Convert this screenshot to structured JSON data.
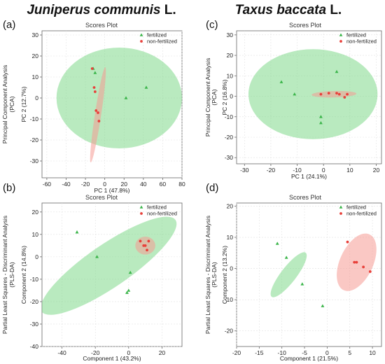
{
  "species": [
    {
      "name": "Juniperus communis",
      "author": "L."
    },
    {
      "name": "Taxus baccata",
      "author": "L."
    }
  ],
  "colors": {
    "fertilized": "#3bb54a",
    "non_fertilized": "#e8403a",
    "fertilized_fill": "#7fd88a",
    "non_fertilized_fill": "#f59a93"
  },
  "chart_data": [
    {
      "panel": "(a)",
      "type": "scatter",
      "title": "Scores Plot",
      "method_label": [
        "Principal Component Analysis",
        "(PCA)"
      ],
      "xlabel": "PC 1 (47.8%)",
      "ylabel": "PC 2 (12.7%)",
      "xlim": [
        -65,
        80
      ],
      "ylim": [
        -38,
        32
      ],
      "xticks": [
        -60,
        -40,
        -20,
        0,
        20,
        40,
        60,
        80
      ],
      "yticks": [
        -30,
        -20,
        -10,
        0,
        10,
        20,
        30
      ],
      "grid": true,
      "legend_position": "top-right",
      "series": [
        {
          "name": "fertilized",
          "marker": "triangle",
          "points": [
            [
              -12,
              14
            ],
            [
              -10,
              12
            ],
            [
              22,
              0
            ],
            [
              43,
              5
            ]
          ],
          "ellipse": {
            "cx": 15,
            "cy": 0,
            "rx": 65,
            "ry": 24,
            "angle": 0
          }
        },
        {
          "name": "non-fertilized",
          "marker": "circle",
          "points": [
            [
              -13,
              14
            ],
            [
              -11,
              5
            ],
            [
              -10,
              3
            ],
            [
              -9,
              -6
            ],
            [
              -7,
              -7
            ],
            [
              -6,
              -11
            ]
          ],
          "ellipse": {
            "cx": -7,
            "cy": -8,
            "rx": 3.2,
            "ry": 23,
            "angle": -4
          }
        }
      ]
    },
    {
      "panel": "(c)",
      "type": "scatter",
      "title": "Scores Plot",
      "method_label": [
        "Principal Component Analysis",
        "(PCA)"
      ],
      "xlabel": "PC 1 (24.1%)",
      "ylabel": "PC 2 (16.8%)",
      "xlim": [
        -33,
        22
      ],
      "ylim": [
        -33,
        32
      ],
      "xticks": [
        -30,
        -20,
        -10,
        0,
        10,
        20
      ],
      "yticks": [
        -30,
        -20,
        -10,
        0,
        10,
        20,
        30
      ],
      "grid": true,
      "legend_position": "top-right",
      "series": [
        {
          "name": "fertilized",
          "marker": "triangle",
          "points": [
            [
              -16,
              7
            ],
            [
              -11,
              1
            ],
            [
              5,
              12
            ],
            [
              -1,
              -10
            ],
            [
              -1,
              -13
            ]
          ],
          "ellipse": {
            "cx": -4,
            "cy": 1,
            "rx": 24.5,
            "ry": 22,
            "angle": 0
          }
        },
        {
          "name": "non-fertilized",
          "marker": "circle",
          "points": [
            [
              -1,
              1
            ],
            [
              2,
              1.5
            ],
            [
              5,
              1.5
            ],
            [
              6,
              1
            ],
            [
              8,
              -0.5
            ],
            [
              9,
              1
            ]
          ],
          "ellipse": {
            "cx": 4,
            "cy": 1,
            "rx": 8.5,
            "ry": 1.6,
            "angle": 2
          }
        }
      ]
    },
    {
      "panel": "(b)",
      "type": "scatter",
      "title": "Scores Plot",
      "method_label": [
        "Partial Least Squares - Discriminant Analysis",
        "(PLS-DA)"
      ],
      "xlabel": "Component 1 (43.2%)",
      "ylabel": "Component 2 (14.8%)",
      "xlim": [
        -52,
        32
      ],
      "ylim": [
        -40,
        24
      ],
      "xticks": [
        -40,
        -20,
        0,
        20
      ],
      "yticks": [
        -40,
        -30,
        -20,
        -10,
        0,
        10,
        20
      ],
      "grid": true,
      "legend_position": "top-right",
      "series": [
        {
          "name": "fertilized",
          "marker": "triangle",
          "points": [
            [
              -31,
              11
            ],
            [
              -19,
              0
            ],
            [
              1,
              -7
            ],
            [
              0,
              -15
            ],
            [
              -1,
              -16
            ]
          ],
          "ellipse": {
            "cx": -12,
            "cy": -4,
            "rx": 45,
            "ry": 10,
            "angle": 27
          }
        },
        {
          "name": "non-fertilized",
          "marker": "circle",
          "points": [
            [
              7,
              7
            ],
            [
              9,
              5
            ],
            [
              10,
              5
            ],
            [
              11,
              3
            ],
            [
              12,
              7
            ]
          ],
          "ellipse": {
            "cx": 10,
            "cy": 5,
            "rx": 6,
            "ry": 4,
            "angle": 0
          }
        }
      ]
    },
    {
      "panel": "(d)",
      "type": "scatter",
      "title": "Scores Plot",
      "method_label": [
        "Partial Least Squares - Discriminant Analysis",
        "(PLS-DA)"
      ],
      "xlabel": "Component 1 (21.5%)",
      "ylabel": "Component 2 (13.2%)",
      "xlim": [
        -20,
        12
      ],
      "ylim": [
        -25,
        21
      ],
      "xticks": [
        -20,
        -15,
        -10,
        -5,
        0,
        5,
        10
      ],
      "yticks": [
        -20,
        -10,
        0,
        10,
        20
      ],
      "grid": true,
      "legend_position": "top-right",
      "series": [
        {
          "name": "fertilized",
          "marker": "triangle",
          "points": [
            [
              -11,
              8
            ],
            [
              -9,
              3.5
            ],
            [
              -5.5,
              -5
            ],
            [
              -1,
              -12
            ]
          ],
          "ellipse": {
            "cx": -8.5,
            "cy": -2,
            "rx": 8,
            "ry": 1.8,
            "angle": 62
          }
        },
        {
          "name": "non-fertilized",
          "marker": "circle",
          "points": [
            [
              4.5,
              8.5
            ],
            [
              6,
              2
            ],
            [
              6.5,
              2
            ],
            [
              8,
              0.5
            ],
            [
              9.5,
              -1
            ]
          ],
          "ellipse": {
            "cx": 6.5,
            "cy": 2,
            "rx": 4,
            "ry": 8.5,
            "angle": -34
          }
        }
      ]
    }
  ]
}
